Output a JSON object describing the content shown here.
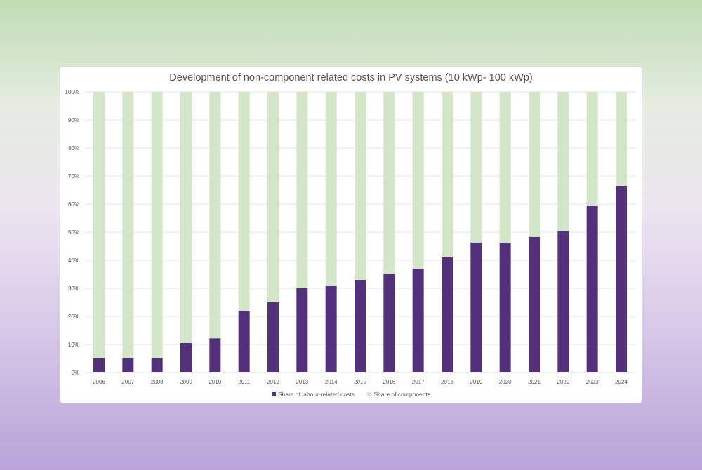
{
  "chart_data": {
    "type": "bar",
    "stacked": true,
    "title": "Development of non-component related costs in PV systems (10 kWp- 100 kWp)",
    "xlabel": "",
    "ylabel": "",
    "ylim": [
      0,
      100
    ],
    "yticks": [
      "0%",
      "10%",
      "20%",
      "30%",
      "40%",
      "50%",
      "60%",
      "70%",
      "80%",
      "90%",
      "100%"
    ],
    "categories": [
      "2006",
      "2007",
      "2008",
      "2009",
      "2010",
      "2011",
      "2012",
      "2013",
      "2014",
      "2015",
      "2016",
      "2017",
      "2018",
      "2019",
      "2020",
      "2021",
      "2022",
      "2023",
      "2024"
    ],
    "series": [
      {
        "name": "Share of labour-related costs",
        "color": "#52307c",
        "values": [
          5,
          5,
          5,
          10.5,
          12.2,
          22,
          25,
          30,
          31,
          33,
          35,
          37,
          41,
          46.3,
          46.3,
          48.3,
          50.4,
          59.5,
          66.5
        ]
      },
      {
        "name": "Share of components",
        "color": "#d3e6c8",
        "values": [
          95,
          95,
          95,
          89.5,
          87.8,
          78,
          75,
          70,
          69,
          67,
          65,
          63,
          59,
          53.7,
          53.7,
          51.7,
          49.6,
          40.5,
          33.5
        ]
      }
    ],
    "grid": true,
    "legend": "bottom"
  }
}
